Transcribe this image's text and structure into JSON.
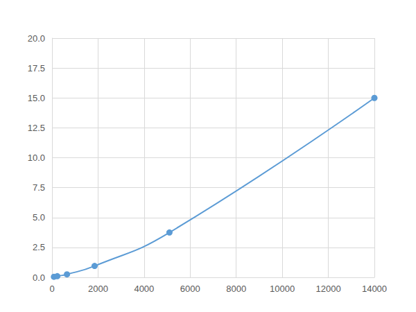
{
  "chart_data": {
    "type": "line",
    "x": [
      85,
      230,
      650,
      1850,
      5100,
      14000
    ],
    "values": [
      0.05,
      0.1,
      0.25,
      0.95,
      3.75,
      15
    ],
    "color": "#5b9bd5",
    "marker": "circle",
    "line_style": "smooth",
    "xlim": [
      0,
      14000
    ],
    "xticks": [
      0,
      2000,
      4000,
      6000,
      8000,
      10000,
      12000,
      14000
    ],
    "ylim": [
      0,
      20
    ],
    "yticks": [
      {
        "value": 0,
        "label": "0.0"
      },
      {
        "value": 2.5,
        "label": "2.5"
      },
      {
        "value": 5,
        "label": "5.0"
      },
      {
        "value": 7.5,
        "label": "7.5"
      },
      {
        "value": 10,
        "label": "10.0"
      },
      {
        "value": 12.5,
        "label": "12.5"
      },
      {
        "value": 15,
        "label": "15.0"
      },
      {
        "value": 17.5,
        "label": "17.5"
      },
      {
        "value": 20,
        "label": "20.0"
      }
    ],
    "grid": true
  }
}
